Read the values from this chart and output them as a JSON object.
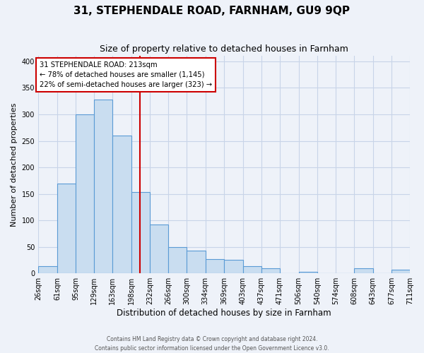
{
  "title": "31, STEPHENDALE ROAD, FARNHAM, GU9 9QP",
  "subtitle": "Size of property relative to detached houses in Farnham",
  "xlabel": "Distribution of detached houses by size in Farnham",
  "ylabel": "Number of detached properties",
  "bin_labels": [
    "26sqm",
    "61sqm",
    "95sqm",
    "129sqm",
    "163sqm",
    "198sqm",
    "232sqm",
    "266sqm",
    "300sqm",
    "334sqm",
    "369sqm",
    "403sqm",
    "437sqm",
    "471sqm",
    "506sqm",
    "540sqm",
    "574sqm",
    "608sqm",
    "643sqm",
    "677sqm",
    "711sqm"
  ],
  "bin_edges": [
    26,
    61,
    95,
    129,
    163,
    198,
    232,
    266,
    300,
    334,
    369,
    403,
    437,
    471,
    506,
    540,
    574,
    608,
    643,
    677,
    711
  ],
  "bar_heights": [
    14,
    170,
    300,
    328,
    260,
    153,
    92,
    50,
    43,
    27,
    25,
    13,
    10,
    0,
    3,
    0,
    0,
    10,
    0,
    7
  ],
  "bar_color": "#c9ddf0",
  "bar_edge_color": "#5b9bd5",
  "bar_edge_width": 0.8,
  "vline_x": 213,
  "vline_color": "#cc0000",
  "annotation_title": "31 STEPHENDALE ROAD: 213sqm",
  "annotation_line1": "← 78% of detached houses are smaller (1,145)",
  "annotation_line2": "22% of semi-detached houses are larger (323) →",
  "annotation_box_facecolor": "#ffffff",
  "annotation_box_edgecolor": "#cc0000",
  "ylim": [
    0,
    410
  ],
  "yticks": [
    0,
    50,
    100,
    150,
    200,
    250,
    300,
    350,
    400
  ],
  "background_color": "#eef2f9",
  "grid_color": "#c8d4e8",
  "title_fontsize": 11,
  "subtitle_fontsize": 9,
  "xlabel_fontsize": 8.5,
  "ylabel_fontsize": 8,
  "tick_fontsize": 7,
  "footer1": "Contains HM Land Registry data © Crown copyright and database right 2024.",
  "footer2": "Contains public sector information licensed under the Open Government Licence v3.0."
}
